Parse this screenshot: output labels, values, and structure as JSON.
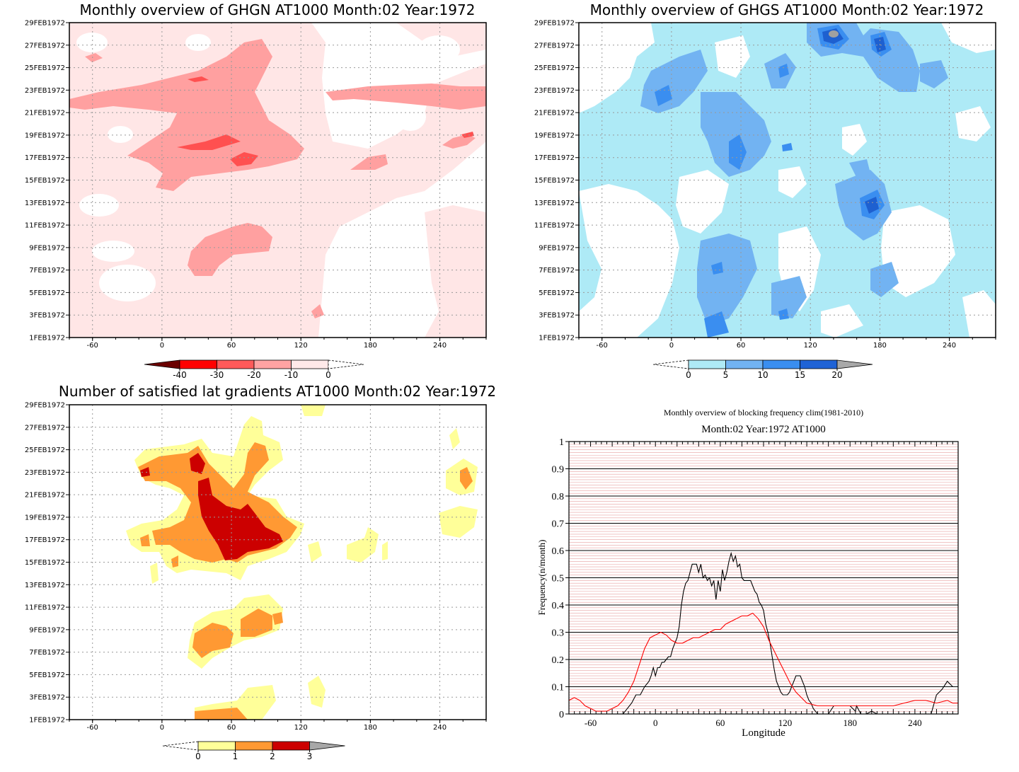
{
  "chart_data": [
    {
      "type": "heatmap",
      "title": "Monthly overview of GHGN AT1000 Month:02 Year:1972",
      "x_ticks": [
        "-60",
        "0",
        "60",
        "120",
        "180",
        "240"
      ],
      "x_tick_values": [
        -60,
        0,
        60,
        120,
        180,
        240
      ],
      "xlim": [
        -80,
        280
      ],
      "y_ticks": [
        "1FEB1972",
        "3FEB1972",
        "5FEB1972",
        "7FEB1972",
        "9FEB1972",
        "11FEB1972",
        "13FEB1972",
        "15FEB1972",
        "17FEB1972",
        "19FEB1972",
        "21FEB1972",
        "23FEB1972",
        "25FEB1972",
        "27FEB1972",
        "29FEB1972"
      ],
      "colorbar": {
        "labels": [
          "-40",
          "-30",
          "-20",
          "-10",
          "0"
        ],
        "colors": [
          "#6b0000",
          "#ff0000",
          "#ff5a5a",
          "#ffa3a3",
          "#ffe9e9",
          "#ffffff"
        ],
        "extends": "both"
      },
      "colors": {
        "c1": "#ffa0a0",
        "c2": "#ff5050",
        "c3": "#ffe6e6"
      },
      "grid": true
    },
    {
      "type": "heatmap",
      "title": "Monthly overview of GHGS AT1000 Month:02 Year:1972",
      "x_ticks": [
        "-60",
        "0",
        "60",
        "120",
        "180",
        "240"
      ],
      "x_tick_values": [
        -60,
        0,
        60,
        120,
        180,
        240
      ],
      "xlim": [
        -80,
        280
      ],
      "y_ticks": [
        "1FEB1972",
        "3FEB1972",
        "5FEB1972",
        "7FEB1972",
        "9FEB1972",
        "11FEB1972",
        "13FEB1972",
        "15FEB1972",
        "17FEB1972",
        "19FEB1972",
        "21FEB1972",
        "23FEB1972",
        "25FEB1972",
        "27FEB1972",
        "29FEB1972"
      ],
      "colorbar": {
        "labels": [
          "0",
          "5",
          "10",
          "15",
          "20"
        ],
        "colors": [
          "#ffffff",
          "#aeeaf6",
          "#72b3f2",
          "#3a8ef0",
          "#1f63d6",
          "#a8a8a8"
        ],
        "extends": "both"
      },
      "colors": {
        "c1": "#aeeaf6",
        "c2": "#72b3f2",
        "c3": "#3a8ef0",
        "c4": "#1e60d0",
        "c5": "#a0a0a0"
      },
      "grid": true
    },
    {
      "type": "heatmap",
      "title": "Number of satisfied lat gradients AT1000 Month:02 Year:1972",
      "x_ticks": [
        "-60",
        "0",
        "60",
        "120",
        "180",
        "240"
      ],
      "x_tick_values": [
        -60,
        0,
        60,
        120,
        180,
        240
      ],
      "xlim": [
        -80,
        280
      ],
      "y_ticks": [
        "1FEB1972",
        "3FEB1972",
        "5FEB1972",
        "7FEB1972",
        "9FEB1972",
        "11FEB1972",
        "13FEB1972",
        "15FEB1972",
        "17FEB1972",
        "19FEB1972",
        "21FEB1972",
        "23FEB1972",
        "25FEB1972",
        "27FEB1972",
        "29FEB1972"
      ],
      "colorbar": {
        "labels": [
          "0",
          "1",
          "2",
          "3"
        ],
        "colors": [
          "#ffffff",
          "#ffff99",
          "#ff9933",
          "#cc0000",
          "#a8a8a8"
        ],
        "extends": "both"
      },
      "colors": {
        "c1": "#ffff99",
        "c2": "#ff9933",
        "c3": "#cc0000"
      },
      "grid": true
    },
    {
      "type": "line",
      "title": "Monthly overview of blocking frequency clim(1981-2010)",
      "subtitle": "Month:02 Year:1972  AT1000",
      "xlabel": "Longitude",
      "ylabel": "Frequency(n/month)",
      "xlim": [
        -80,
        280
      ],
      "ylim": [
        0,
        1
      ],
      "x_ticks": [
        "-60",
        "0",
        "60",
        "120",
        "180",
        "240"
      ],
      "x_tick_values": [
        -60,
        0,
        60,
        120,
        180,
        240
      ],
      "y_ticks": [
        "0",
        "0.1",
        "0.2",
        "0.3",
        "0.4",
        "0.5",
        "0.6",
        "0.7",
        "0.8",
        "0.9",
        "1"
      ],
      "y_tick_values": [
        0,
        0.1,
        0.2,
        0.3,
        0.4,
        0.5,
        0.6,
        0.7,
        0.8,
        0.9,
        1
      ],
      "grid": true,
      "series": [
        {
          "color": "#000000",
          "x": [
            -80,
            -45,
            -40,
            -35,
            -30,
            -26,
            -22,
            -18,
            -14,
            -10,
            -6,
            -4,
            -2,
            0,
            2,
            4,
            6,
            8,
            10,
            12,
            14,
            16,
            18,
            20,
            22,
            24,
            26,
            28,
            30,
            32,
            34,
            36,
            38,
            40,
            42,
            44,
            46,
            48,
            50,
            52,
            54,
            56,
            58,
            60,
            62,
            64,
            66,
            68,
            70,
            72,
            74,
            76,
            78,
            80,
            82,
            84,
            86,
            88,
            90,
            92,
            94,
            96,
            98,
            100,
            102,
            104,
            106,
            108,
            110,
            112,
            114,
            116,
            118,
            120,
            122,
            124,
            126,
            128,
            130,
            132,
            134,
            136,
            138,
            140,
            142,
            144,
            146,
            150,
            160,
            165,
            170,
            175,
            180,
            185,
            186,
            190,
            195,
            200,
            205,
            210,
            215,
            220,
            225,
            230,
            235,
            240,
            245,
            250,
            255,
            260,
            265,
            270,
            275,
            280
          ],
          "y": [
            0,
            0,
            0,
            0,
            0,
            0.02,
            0.04,
            0.07,
            0.07,
            0.1,
            0.12,
            0.14,
            0.17,
            0.14,
            0.17,
            0.17,
            0.19,
            0.19,
            0.2,
            0.21,
            0.21,
            0.24,
            0.26,
            0.28,
            0.32,
            0.4,
            0.45,
            0.48,
            0.49,
            0.52,
            0.55,
            0.55,
            0.55,
            0.52,
            0.55,
            0.5,
            0.51,
            0.49,
            0.5,
            0.47,
            0.49,
            0.42,
            0.49,
            0.45,
            0.53,
            0.49,
            0.52,
            0.56,
            0.59,
            0.56,
            0.58,
            0.54,
            0.55,
            0.5,
            0.49,
            0.49,
            0.49,
            0.49,
            0.47,
            0.45,
            0.44,
            0.41,
            0.4,
            0.38,
            0.33,
            0.3,
            0.26,
            0.21,
            0.16,
            0.12,
            0.1,
            0.08,
            0.07,
            0.07,
            0.07,
            0.08,
            0.1,
            0.12,
            0.14,
            0.14,
            0.14,
            0.12,
            0.1,
            0.07,
            0.05,
            0.04,
            0.02,
            0,
            0,
            0.03,
            0.03,
            0.03,
            0.03,
            0.01,
            0.03,
            0,
            0,
            0.01,
            0,
            0,
            0,
            0,
            0,
            0,
            0,
            0,
            0,
            0,
            0,
            0.07,
            0.09,
            0.12,
            0.1,
            0.1
          ],
          "note": ""
        },
        {
          "color": "#ff0000",
          "x": [
            -80,
            -75,
            -70,
            -65,
            -60,
            -55,
            -50,
            -45,
            -40,
            -35,
            -30,
            -25,
            -20,
            -15,
            -10,
            -5,
            0,
            5,
            10,
            15,
            20,
            25,
            30,
            35,
            40,
            45,
            50,
            55,
            60,
            65,
            70,
            75,
            80,
            85,
            90,
            95,
            100,
            105,
            110,
            115,
            120,
            125,
            130,
            135,
            140,
            150,
            160,
            170,
            180,
            190,
            200,
            210,
            220,
            230,
            240,
            250,
            260,
            270,
            275,
            280
          ],
          "y": [
            0.05,
            0.06,
            0.05,
            0.03,
            0.02,
            0.01,
            0.01,
            0.01,
            0.02,
            0.03,
            0.05,
            0.08,
            0.12,
            0.18,
            0.24,
            0.28,
            0.29,
            0.3,
            0.29,
            0.27,
            0.26,
            0.26,
            0.27,
            0.28,
            0.28,
            0.29,
            0.3,
            0.31,
            0.31,
            0.33,
            0.34,
            0.35,
            0.36,
            0.36,
            0.37,
            0.35,
            0.32,
            0.27,
            0.23,
            0.19,
            0.15,
            0.11,
            0.08,
            0.06,
            0.04,
            0.03,
            0.03,
            0.03,
            0.03,
            0.03,
            0.03,
            0.03,
            0.03,
            0.04,
            0.05,
            0.05,
            0.04,
            0.05,
            0.04,
            0.04
          ]
        }
      ]
    }
  ]
}
